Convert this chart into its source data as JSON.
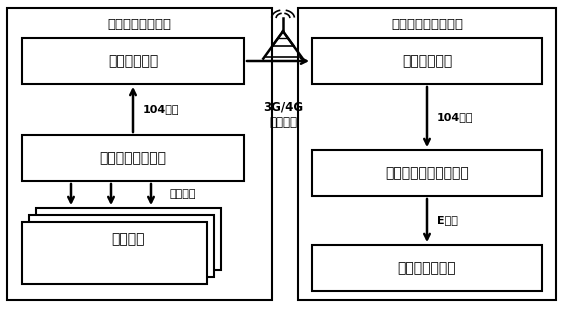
{
  "fig_width": 5.63,
  "fig_height": 3.09,
  "dpi": 100,
  "bg_color": "#ffffff",
  "left_panel_title": "可再生能源电厂侧",
  "right_panel_title": "电力调控中心主站侧",
  "left_box1_text": "加密认证装置",
  "left_box2_text": "集中采集存储模块",
  "left_box3_text": "采集终端",
  "right_box1_text": "加密认证装置",
  "right_box2_text": "安全区前置采集服务器",
  "right_box3_text": "电力调度数据网",
  "label_104_left": "104规约",
  "label_serial": "串口通信",
  "label_3g4g": "3G/4G\n公用网络",
  "label_104_right": "104规约",
  "label_efile": "E文件"
}
